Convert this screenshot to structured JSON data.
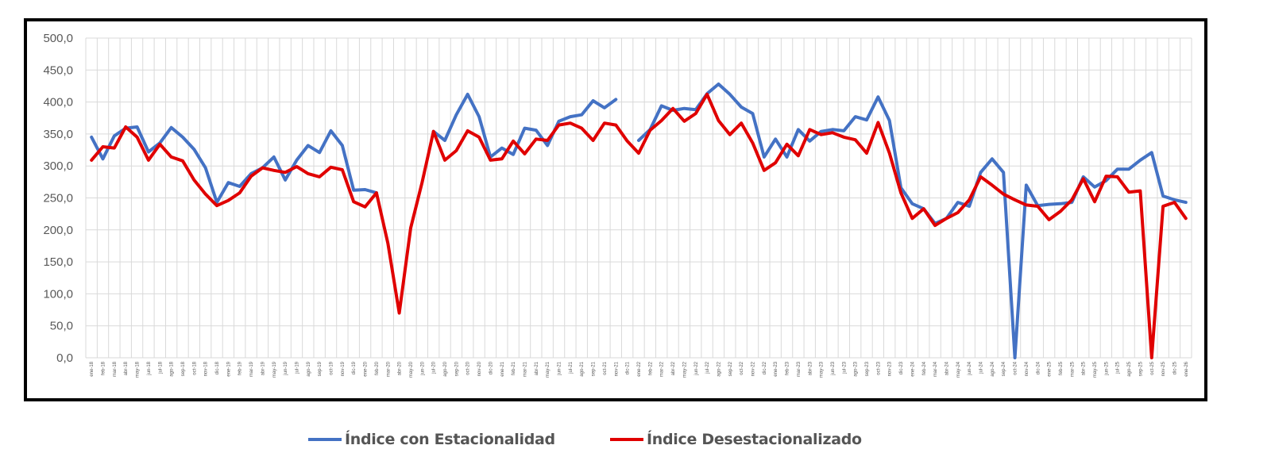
{
  "chart_data": {
    "type": "line",
    "title": "",
    "xlabel": "",
    "ylabel": "",
    "ylim": [
      0,
      500
    ],
    "ytick_step": 50,
    "ytick_labels": [
      "0,0",
      "50,0",
      "100,0",
      "150,0",
      "200,0",
      "250,0",
      "300,0",
      "350,0",
      "400,0",
      "450,0",
      "500,0"
    ],
    "grid": true,
    "legend_position": "bottom",
    "categories": [
      "ene-18",
      "feb-18",
      "mar-18",
      "abr-18",
      "may-18",
      "jun-18",
      "jul-18",
      "ago-18",
      "sep-18",
      "oct-18",
      "nov-18",
      "dic-18",
      "ene-19",
      "feb-19",
      "mar-19",
      "abr-19",
      "may-19",
      "jun-19",
      "jul-19",
      "ago-19",
      "sep-19",
      "oct-19",
      "nov-19",
      "dic-19",
      "ene-20",
      "feb-20",
      "mar-20",
      "abr-20",
      "may-20",
      "jun-20",
      "jul-20",
      "ago-20",
      "sep-20",
      "oct-20",
      "nov-20",
      "dic-20",
      "ene-21",
      "feb-21",
      "mar-21",
      "abr-21",
      "may-21",
      "jun-21",
      "jul-21",
      "ago-21",
      "sep-21",
      "oct-21",
      "nov-21",
      "dic-21",
      "ene-22",
      "feb-22",
      "mar-22",
      "abr-22",
      "may-22",
      "jun-22",
      "jul-22",
      "ago-22",
      "sep-22",
      "oct-22",
      "nov-22",
      "dic-22",
      "ene-23",
      "feb-23",
      "mar-23",
      "abr-23",
      "may-23",
      "jun-23",
      "jul-23",
      "ago-23",
      "sep-23",
      "oct-23",
      "nov-23",
      "dic-23",
      "ene-24",
      "feb-24",
      "mar-24",
      "abr-24",
      "may-24",
      "jun-24",
      "jul-24",
      "ago-24",
      "sep-24",
      "oct-24",
      "nov-24",
      "dic-24",
      "ene-25",
      "feb-25",
      "mar-25",
      "abr-25",
      "may-25",
      "jun-25",
      "jul-25",
      "ago-25",
      "sep-25",
      "oct-25",
      "nov-25",
      "dic-25",
      "ene-26"
    ],
    "series": [
      {
        "name": "Índice con Estacionalidad",
        "color": "#4472C4",
        "values": [
          345,
          311,
          347,
          359,
          361,
          322,
          336,
          360,
          345,
          326,
          297,
          243,
          274,
          268,
          288,
          297,
          314,
          278,
          309,
          332,
          321,
          355,
          332,
          262,
          263,
          258,
          null,
          null,
          null,
          null,
          354,
          340,
          380,
          412,
          377,
          314,
          328,
          318,
          359,
          356,
          332,
          370,
          377,
          380,
          402,
          391,
          404,
          null,
          340,
          357,
          394,
          387,
          390,
          388,
          413,
          428,
          412,
          392,
          382,
          314,
          342,
          314,
          357,
          339,
          354,
          357,
          355,
          377,
          372,
          408,
          371,
          266,
          241,
          233,
          210,
          218,
          243,
          237,
          290,
          311,
          290,
          0,
          270,
          238,
          240,
          241,
          243,
          283,
          267,
          277,
          295,
          295,
          309,
          321,
          253,
          247,
          243
        ]
      },
      {
        "name": "Índice Desestacionalizado",
        "color": "#E00000",
        "values": [
          309,
          330,
          328,
          361,
          345,
          309,
          334,
          314,
          308,
          278,
          256,
          238,
          246,
          258,
          284,
          297,
          293,
          290,
          299,
          288,
          283,
          298,
          294,
          244,
          236,
          258,
          179,
          70,
          203,
          274,
          354,
          309,
          324,
          355,
          345,
          309,
          311,
          339,
          319,
          342,
          340,
          364,
          367,
          359,
          340,
          367,
          364,
          339,
          320,
          356,
          371,
          390,
          370,
          382,
          412,
          371,
          349,
          367,
          336,
          293,
          305,
          334,
          316,
          357,
          349,
          352,
          345,
          341,
          320,
          368,
          320,
          258,
          218,
          233,
          207,
          218,
          227,
          247,
          283,
          270,
          256,
          247,
          239,
          237,
          216,
          229,
          247,
          280,
          244,
          284,
          283,
          259,
          261,
          0,
          237,
          243,
          218
        ]
      }
    ]
  },
  "legend": {
    "items": [
      {
        "label": "Índice con Estacionalidad",
        "color": "#4472C4"
      },
      {
        "label": "Índice Desestacionalizado",
        "color": "#E00000"
      }
    ]
  }
}
